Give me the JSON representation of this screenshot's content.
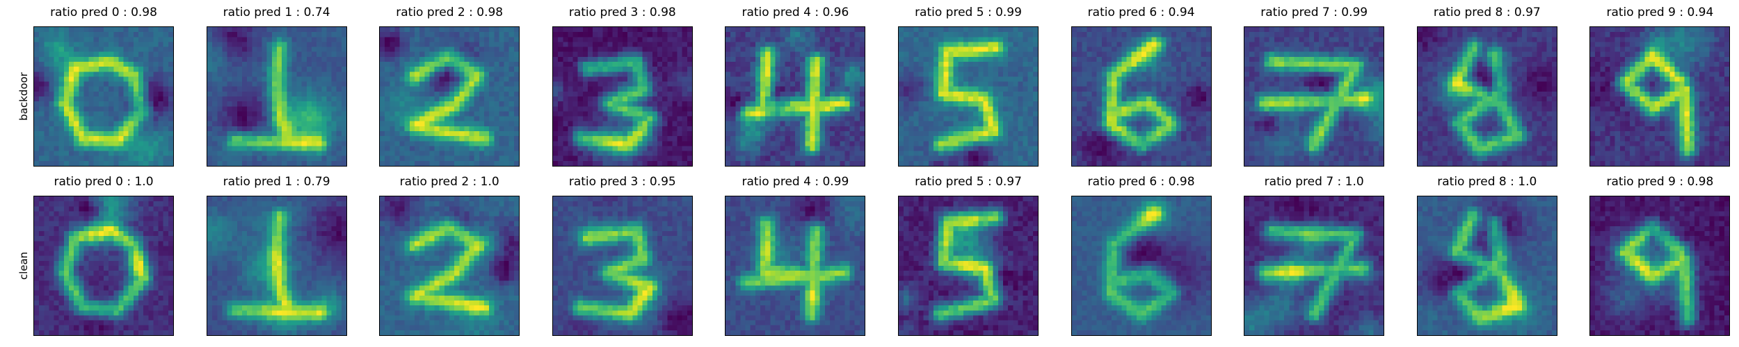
{
  "chart_data": {
    "type": "heatmap",
    "colormap": "viridis",
    "value_range": [
      0,
      1
    ],
    "grid": false,
    "axes_ticks": false,
    "rows": [
      {
        "label": "backdoor",
        "panels": [
          {
            "digit": 0,
            "title": "ratio pred 0 : 0.98"
          },
          {
            "digit": 1,
            "title": "ratio pred 1 : 0.74"
          },
          {
            "digit": 2,
            "title": "ratio pred 2 : 0.98"
          },
          {
            "digit": 3,
            "title": "ratio pred 3 : 0.98"
          },
          {
            "digit": 4,
            "title": "ratio pred 4 : 0.96"
          },
          {
            "digit": 5,
            "title": "ratio pred 5 : 0.99"
          },
          {
            "digit": 6,
            "title": "ratio pred 6 : 0.94"
          },
          {
            "digit": 7,
            "title": "ratio pred 7 : 0.99"
          },
          {
            "digit": 8,
            "title": "ratio pred 8 : 0.97"
          },
          {
            "digit": 9,
            "title": "ratio pred 9 : 0.94"
          }
        ]
      },
      {
        "label": "clean",
        "panels": [
          {
            "digit": 0,
            "title": "ratio pred 0 :  1.0"
          },
          {
            "digit": 1,
            "title": "ratio pred 1 : 0.79"
          },
          {
            "digit": 2,
            "title": "ratio pred 2 :  1.0"
          },
          {
            "digit": 3,
            "title": "ratio pred 3 : 0.95"
          },
          {
            "digit": 4,
            "title": "ratio pred 4 : 0.99"
          },
          {
            "digit": 5,
            "title": "ratio pred 5 : 0.97"
          },
          {
            "digit": 6,
            "title": "ratio pred 6 : 0.98"
          },
          {
            "digit": 7,
            "title": "ratio pred 7 :  1.0"
          },
          {
            "digit": 8,
            "title": "ratio pred 8 :  1.0"
          },
          {
            "digit": 9,
            "title": "ratio pred 9 : 0.98"
          }
        ]
      }
    ]
  }
}
